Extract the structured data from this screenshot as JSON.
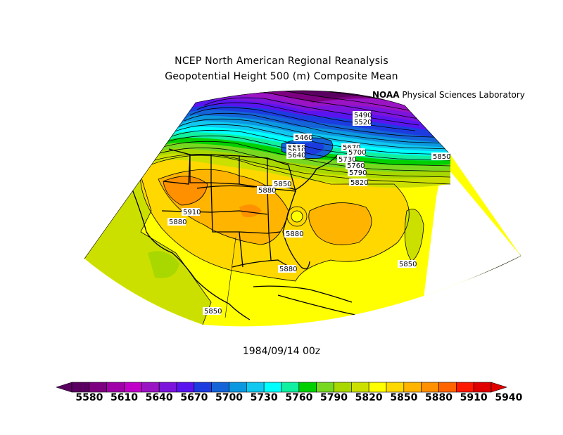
{
  "title_line1": "NCEP North American Regional Reanalysis",
  "title_line2": "Geopotential Height 500 (m) Composite Mean",
  "credit_logo": "NOAA",
  "credit_text": " Physical Sciences Laboratory",
  "date_label": "1984/09/14 00z",
  "colorbar": {
    "colors": [
      "#5a0060",
      "#7c0080",
      "#a000a8",
      "#c000c8",
      "#9a14c4",
      "#7c14dc",
      "#5a14f0",
      "#1c3ce0",
      "#1464d8",
      "#0c98e0",
      "#10c8f0",
      "#00ffff",
      "#10f0a0",
      "#00d000",
      "#78d820",
      "#a8d800",
      "#cce000",
      "#ffff00",
      "#ffd800",
      "#ffb400",
      "#ff9000",
      "#ff6400",
      "#ff1800",
      "#e00000"
    ],
    "labels": [
      "5580",
      "5610",
      "5640",
      "5670",
      "5700",
      "5730",
      "5760",
      "5790",
      "5820",
      "5850",
      "5880",
      "5910",
      "5940"
    ]
  },
  "contour_labels": [
    "5490",
    "5520",
    "5460",
    "5550",
    "5610",
    "5640",
    "5670",
    "5700",
    "5730",
    "5760",
    "5790",
    "5820",
    "5850",
    "5880",
    "5910",
    "5850",
    "5880",
    "5880",
    "5850",
    "5850",
    "5880"
  ]
}
